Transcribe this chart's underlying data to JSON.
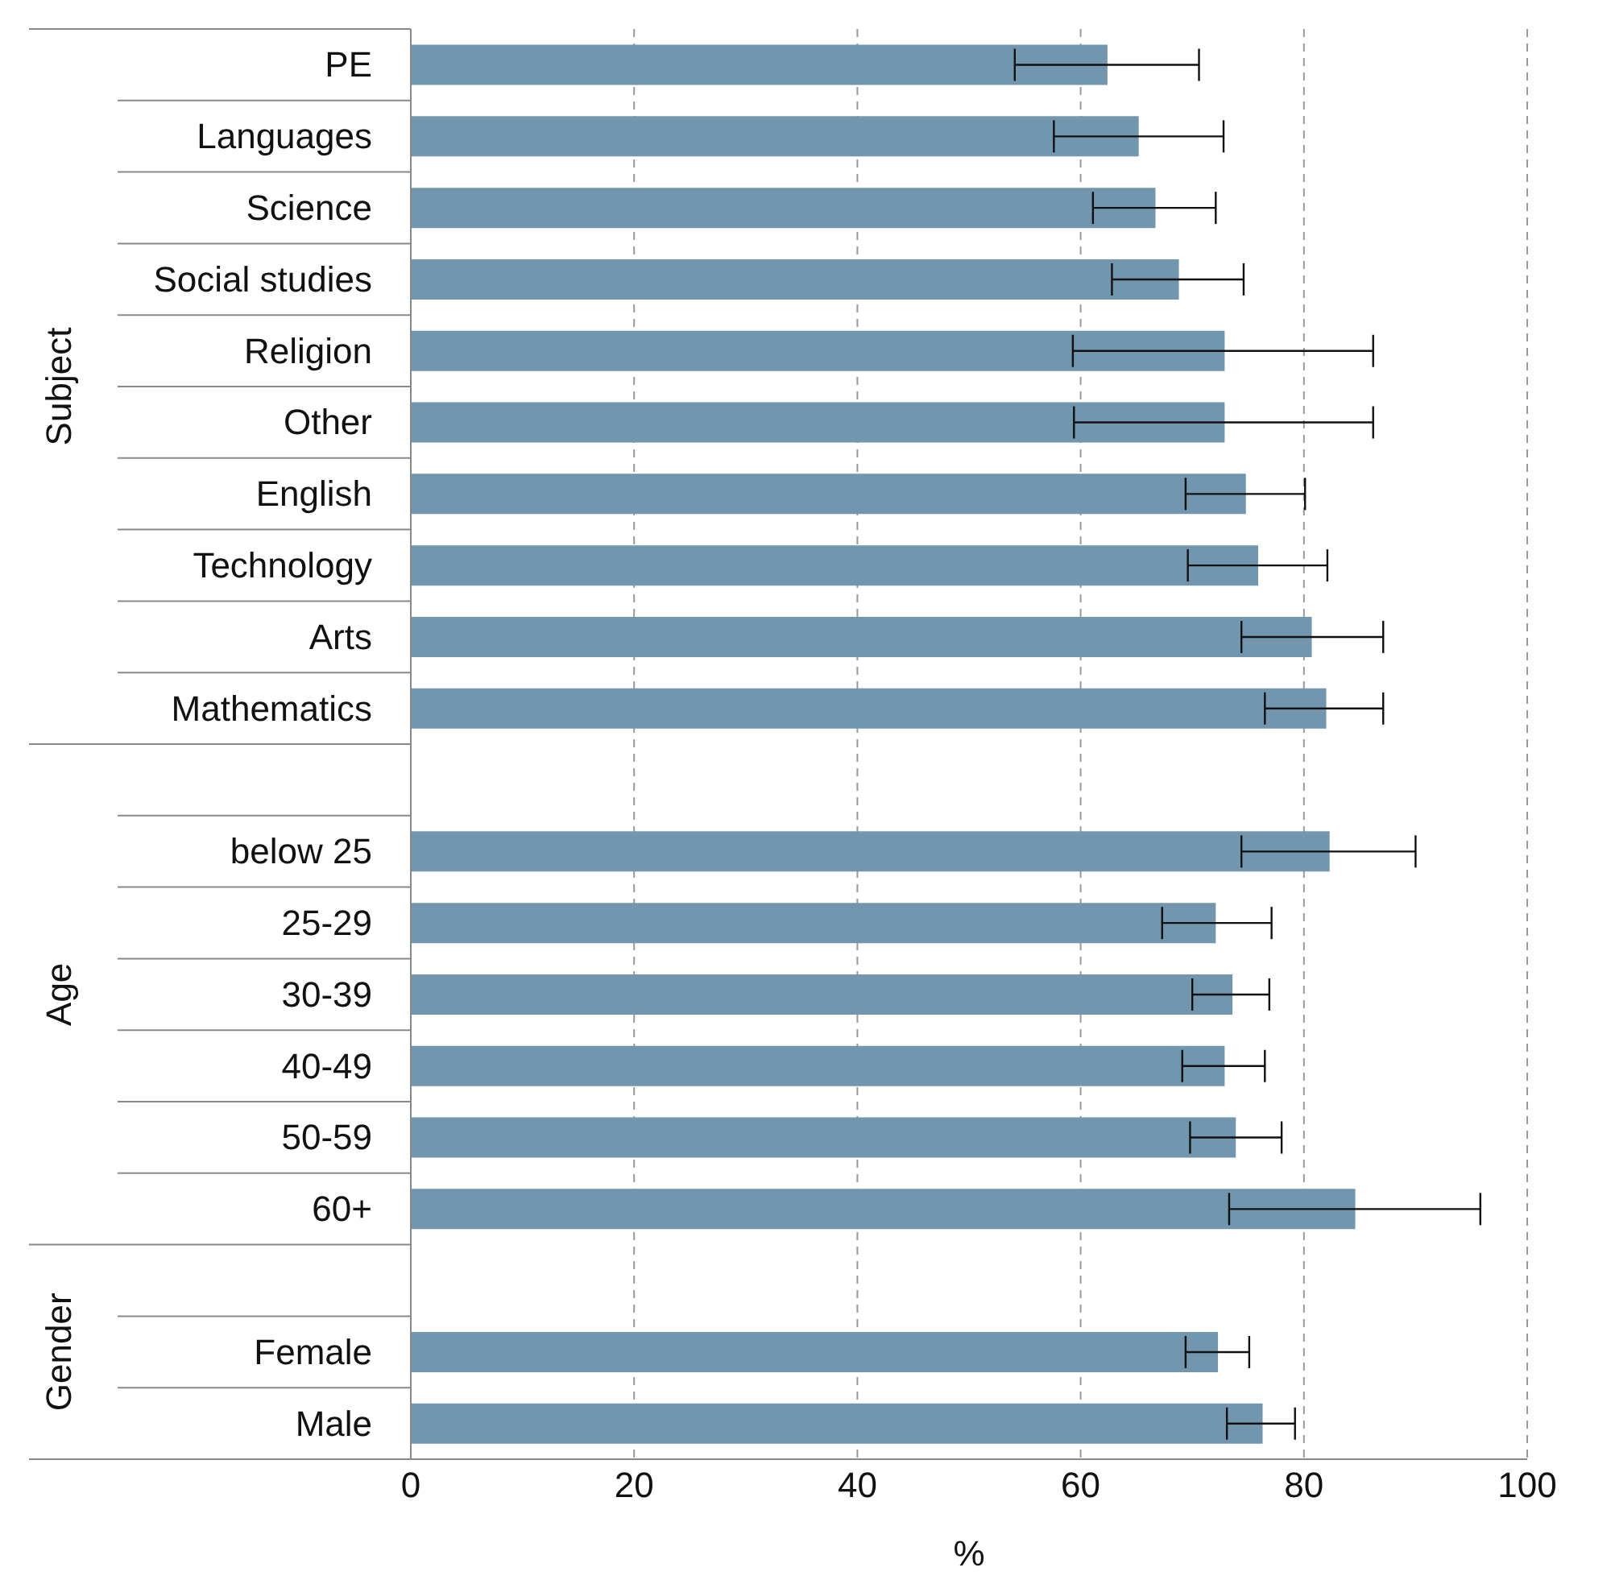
{
  "chart_data": {
    "type": "bar",
    "orientation": "horizontal",
    "xlabel": "%",
    "categories": [
      "PE",
      "Languages",
      "Science",
      "Social studies",
      "Religion",
      "Other",
      "English",
      "Technology",
      "Arts",
      "Mathematics",
      null,
      "below 25",
      "25-29",
      "30-39",
      "40-49",
      "50-59",
      "60+",
      null,
      "Female",
      "Male"
    ],
    "values": [
      62.4,
      65.2,
      66.7,
      68.8,
      72.9,
      72.9,
      74.8,
      75.9,
      80.7,
      82.0,
      null,
      82.3,
      72.1,
      73.6,
      72.9,
      73.9,
      84.6,
      null,
      72.3,
      76.3
    ],
    "errors": [
      [
        54.1,
        70.6
      ],
      [
        57.6,
        72.8
      ],
      [
        61.1,
        72.1
      ],
      [
        62.8,
        74.6
      ],
      [
        59.3,
        86.2
      ],
      [
        59.4,
        86.2
      ],
      [
        69.4,
        80.1
      ],
      [
        69.6,
        82.1
      ],
      [
        74.4,
        87.1
      ],
      [
        76.5,
        87.1
      ],
      null,
      [
        74.4,
        90.0
      ],
      [
        67.3,
        77.1
      ],
      [
        70.0,
        76.9
      ],
      [
        69.1,
        76.5
      ],
      [
        69.8,
        78.0
      ],
      [
        73.3,
        95.8
      ],
      null,
      [
        69.4,
        75.1
      ],
      [
        73.1,
        79.2
      ]
    ],
    "color": "#7196ae",
    "xlim": [
      0,
      100
    ],
    "xticks": [
      0,
      20,
      40,
      60,
      80,
      100
    ],
    "grid": "x",
    "annotations": [
      "Subject",
      "Age",
      "Gender"
    ]
  }
}
